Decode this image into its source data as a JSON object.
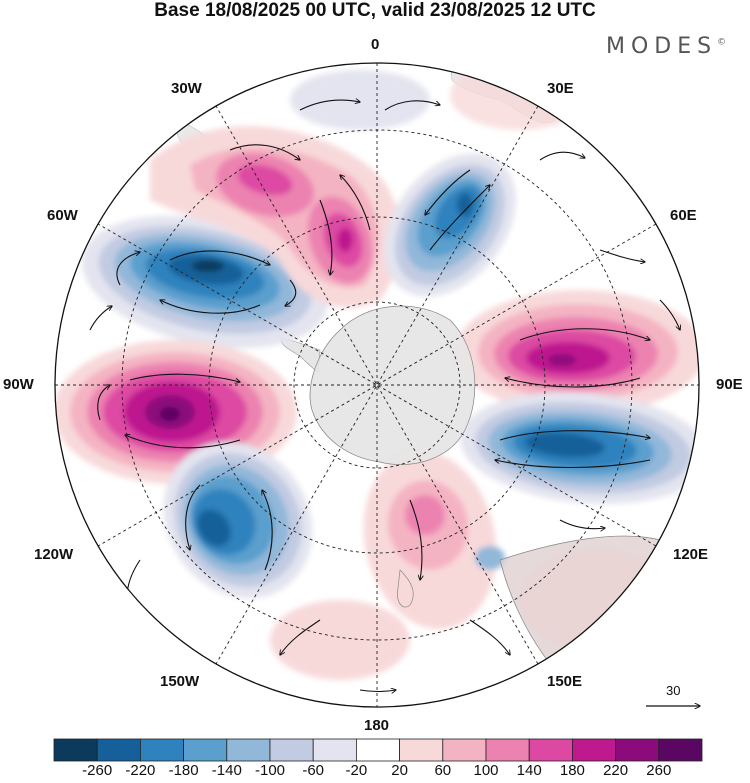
{
  "title": "Base 18/08/2025 00 UTC, valid 23/08/2025 12 UTC",
  "brand": "MODES",
  "brand_mark": "©",
  "projection": "south-polar-stereographic",
  "longitude_labels": {
    "lon_0": "0",
    "lon_30e": "30E",
    "lon_60e": "60E",
    "lon_90e": "90E",
    "lon_120e": "120E",
    "lon_150e": "150E",
    "lon_180": "180",
    "lon_150w": "150W",
    "lon_120w": "120W",
    "lon_90w": "90W",
    "lon_60w": "60W",
    "lon_30w": "30W"
  },
  "vector_reference": {
    "label": "30",
    "units": "reference wind vector"
  },
  "colorbar": {
    "ticks": [
      "-260",
      "-220",
      "-180",
      "-140",
      "-100",
      "-60",
      "-20",
      "20",
      "60",
      "100",
      "140",
      "180",
      "220",
      "260"
    ],
    "colors": [
      "#0b3a5c",
      "#15609a",
      "#2f82bd",
      "#5a9fcd",
      "#91b7d9",
      "#c1cbe2",
      "#e3e4ef",
      "#ffffff",
      "#f8d9da",
      "#f4b3c2",
      "#ec82b0",
      "#dd48a3",
      "#be198f",
      "#8b0b7c",
      "#5a0663"
    ]
  },
  "anomaly_centers": [
    {
      "name": "low-60w",
      "sign": "negative",
      "peak": -260
    },
    {
      "name": "high-30w",
      "sign": "positive",
      "peak": 220
    },
    {
      "name": "low-35e",
      "sign": "negative",
      "peak": -180
    },
    {
      "name": "high-80e",
      "sign": "positive",
      "peak": 220
    },
    {
      "name": "low-105e",
      "sign": "negative",
      "peak": -220
    },
    {
      "name": "high-95w",
      "sign": "positive",
      "peak": 260
    },
    {
      "name": "low-135w",
      "sign": "negative",
      "peak": -220
    },
    {
      "name": "high-165e",
      "sign": "positive",
      "peak": 140
    }
  ]
}
